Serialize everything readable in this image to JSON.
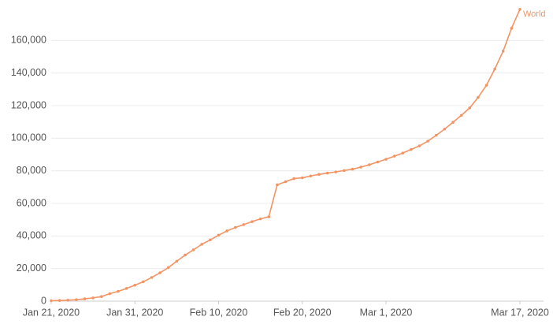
{
  "chart_data": {
    "type": "line",
    "x": [
      "2020-01-21",
      "2020-01-22",
      "2020-01-23",
      "2020-01-24",
      "2020-01-25",
      "2020-01-26",
      "2020-01-27",
      "2020-01-28",
      "2020-01-29",
      "2020-01-30",
      "2020-01-31",
      "2020-02-01",
      "2020-02-02",
      "2020-02-03",
      "2020-02-04",
      "2020-02-05",
      "2020-02-06",
      "2020-02-07",
      "2020-02-08",
      "2020-02-09",
      "2020-02-10",
      "2020-02-11",
      "2020-02-12",
      "2020-02-13",
      "2020-02-14",
      "2020-02-15",
      "2020-02-16",
      "2020-02-17",
      "2020-02-18",
      "2020-02-19",
      "2020-02-20",
      "2020-02-21",
      "2020-02-22",
      "2020-02-23",
      "2020-02-24",
      "2020-02-25",
      "2020-02-26",
      "2020-02-27",
      "2020-02-28",
      "2020-02-29",
      "2020-03-01",
      "2020-03-02",
      "2020-03-03",
      "2020-03-04",
      "2020-03-05",
      "2020-03-06",
      "2020-03-07",
      "2020-03-08",
      "2020-03-09",
      "2020-03-10",
      "2020-03-11",
      "2020-03-12",
      "2020-03-13",
      "2020-03-14",
      "2020-03-15",
      "2020-03-16",
      "2020-03-17"
    ],
    "series": [
      {
        "name": "World",
        "color": "#f39464",
        "values": [
          300,
          400,
          600,
          900,
          1400,
          2000,
          2800,
          4600,
          6000,
          7800,
          9800,
          11900,
          14500,
          17400,
          20600,
          24500,
          28300,
          31500,
          34900,
          37600,
          40500,
          43100,
          45200,
          47000,
          48800,
          50500,
          51800,
          71400,
          73300,
          75200,
          75700,
          76800,
          77800,
          78600,
          79300,
          80200,
          81000,
          82300,
          83700,
          85400,
          87100,
          89000,
          90900,
          93100,
          95300,
          98200,
          101800,
          105600,
          109800,
          114000,
          118600,
          125000,
          132500,
          142500,
          153500,
          167500,
          179100
        ]
      }
    ],
    "xlim": [
      "2020-01-21",
      "2020-03-17"
    ],
    "xticks": [
      {
        "value": "2020-01-21",
        "label": "Jan 21, 2020"
      },
      {
        "value": "2020-01-31",
        "label": "Jan 31, 2020"
      },
      {
        "value": "2020-02-10",
        "label": "Feb 10, 2020"
      },
      {
        "value": "2020-02-20",
        "label": "Feb 20, 2020"
      },
      {
        "value": "2020-03-01",
        "label": "Mar 1, 2020"
      },
      {
        "value": "2020-03-17",
        "label": "Mar 17, 2020"
      }
    ],
    "ylim": [
      0,
      180000
    ],
    "yticks": [
      0,
      {
        "value": 20000,
        "label": "20,000"
      },
      {
        "value": 40000,
        "label": "40,000"
      },
      {
        "value": 60000,
        "label": "60,000"
      },
      {
        "value": 80000,
        "label": "80,000"
      },
      {
        "value": 100000,
        "label": "100,000"
      },
      {
        "value": 120000,
        "label": "120,000"
      },
      {
        "value": 140000,
        "label": "140,000"
      },
      {
        "value": 160000,
        "label": "160,000"
      }
    ],
    "grid": true
  }
}
